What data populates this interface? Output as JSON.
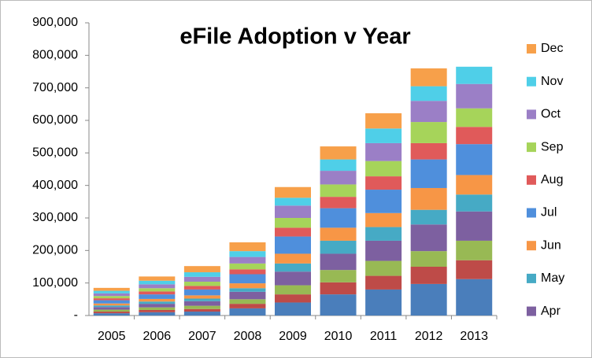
{
  "chart_data": {
    "type": "stacked-bar",
    "title": "eFile Adoption v Year",
    "categories": [
      "2005",
      "2006",
      "2007",
      "2008",
      "2009",
      "2010",
      "2011",
      "2012",
      "2013"
    ],
    "series": [
      {
        "name": null,
        "color": "#4a7ebb",
        "values": [
          7000,
          10000,
          12000,
          22000,
          40000,
          65000,
          80000,
          97000,
          112000
        ]
      },
      {
        "name": null,
        "color": "#be4b48",
        "values": [
          5000,
          7000,
          8000,
          14000,
          25000,
          37000,
          42000,
          53000,
          58000
        ]
      },
      {
        "name": null,
        "color": "#98b954",
        "values": [
          6000,
          8000,
          10000,
          14000,
          28000,
          38000,
          46000,
          48000,
          60000
        ]
      },
      {
        "name": "Apr",
        "color": "#7d60a0",
        "values": [
          8000,
          11000,
          14000,
          23000,
          42000,
          50000,
          62000,
          82000,
          90000
        ]
      },
      {
        "name": "May",
        "color": "#46aac5",
        "values": [
          5000,
          7000,
          8000,
          11000,
          25000,
          40000,
          42000,
          45000,
          52000
        ]
      },
      {
        "name": "Jun",
        "color": "#f79646",
        "values": [
          6000,
          8000,
          10000,
          15000,
          30000,
          40000,
          43000,
          67000,
          60000
        ]
      },
      {
        "name": "Jul",
        "color": "#4f8fdc",
        "values": [
          10000,
          14000,
          18000,
          28000,
          53000,
          60000,
          72000,
          88000,
          95000
        ]
      },
      {
        "name": "Aug",
        "color": "#e05a5a",
        "values": [
          6000,
          9000,
          11000,
          15000,
          27000,
          35000,
          41000,
          50000,
          53000
        ]
      },
      {
        "name": "Sep",
        "color": "#a6d45a",
        "values": [
          7000,
          10000,
          13000,
          18000,
          30000,
          38000,
          47000,
          65000,
          57000
        ]
      },
      {
        "name": "Oct",
        "color": "#9b7fc6",
        "values": [
          8000,
          12000,
          15000,
          20000,
          38000,
          42000,
          55000,
          65000,
          75000
        ]
      },
      {
        "name": "Nov",
        "color": "#4fcfe8",
        "values": [
          8000,
          11000,
          14000,
          18000,
          24000,
          35000,
          45000,
          45000,
          53000
        ]
      },
      {
        "name": "Dec",
        "color": "#f7a04a",
        "values": [
          9000,
          13000,
          19000,
          27000,
          33000,
          40000,
          47000,
          55000,
          0
        ]
      }
    ],
    "ylim": [
      0,
      900000
    ],
    "yticks": [
      {
        "value": 0,
        "label": "-"
      },
      {
        "value": 100000,
        "label": "100,000"
      },
      {
        "value": 200000,
        "label": "200,000"
      },
      {
        "value": 300000,
        "label": "300,000"
      },
      {
        "value": 400000,
        "label": "400,000"
      },
      {
        "value": 500000,
        "label": "500,000"
      },
      {
        "value": 600000,
        "label": "600,000"
      },
      {
        "value": 700000,
        "label": "700,000"
      },
      {
        "value": 800000,
        "label": "800,000"
      },
      {
        "value": 900000,
        "label": "900,000"
      }
    ],
    "legend": "right"
  }
}
